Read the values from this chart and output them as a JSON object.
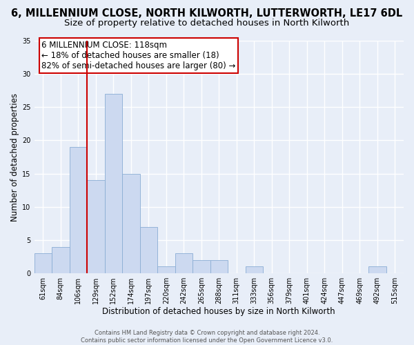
{
  "title": "6, MILLENNIUM CLOSE, NORTH KILWORTH, LUTTERWORTH, LE17 6DL",
  "subtitle": "Size of property relative to detached houses in North Kilworth",
  "xlabel": "Distribution of detached houses by size in North Kilworth",
  "ylabel": "Number of detached properties",
  "bar_color": "#ccd9f0",
  "bar_edge_color": "#8aadd4",
  "bin_labels": [
    "61sqm",
    "84sqm",
    "106sqm",
    "129sqm",
    "152sqm",
    "174sqm",
    "197sqm",
    "220sqm",
    "242sqm",
    "265sqm",
    "288sqm",
    "311sqm",
    "333sqm",
    "356sqm",
    "379sqm",
    "401sqm",
    "424sqm",
    "447sqm",
    "469sqm",
    "492sqm",
    "515sqm"
  ],
  "bar_values": [
    3,
    4,
    19,
    14,
    27,
    15,
    7,
    1,
    3,
    2,
    2,
    0,
    1,
    0,
    0,
    0,
    0,
    0,
    0,
    1,
    0
  ],
  "ylim": [
    0,
    35
  ],
  "yticks": [
    0,
    5,
    10,
    15,
    20,
    25,
    30,
    35
  ],
  "vline_x": 3.0,
  "vline_color": "#cc0000",
  "annotation_box_text": "6 MILLENNIUM CLOSE: 118sqm\n← 18% of detached houses are smaller (18)\n82% of semi-detached houses are larger (80) →",
  "footer_text": "Contains HM Land Registry data © Crown copyright and database right 2024.\nContains public sector information licensed under the Open Government Licence v3.0.",
  "background_color": "#e8eef8",
  "grid_color": "#ffffff",
  "title_fontsize": 10.5,
  "subtitle_fontsize": 9.5,
  "axis_label_fontsize": 8.5,
  "tick_fontsize": 7,
  "annotation_fontsize": 8.5,
  "footer_fontsize": 6
}
